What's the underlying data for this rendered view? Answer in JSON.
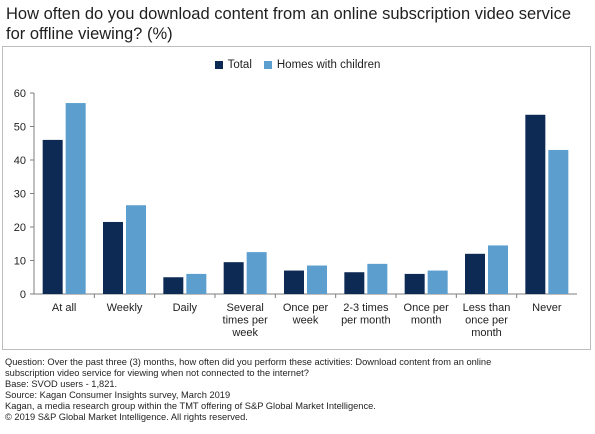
{
  "title": "How often do you download content from an online subscription video service\nfor offline viewing? (%)",
  "colors": {
    "total": "#0d2a55",
    "homes_with_children": "#5c9fcf"
  },
  "chart_data": {
    "type": "bar",
    "categories": [
      [
        "At all"
      ],
      [
        "Weekly"
      ],
      [
        "Daily"
      ],
      [
        "Several",
        "times per",
        "week"
      ],
      [
        "Once per",
        "week"
      ],
      [
        "2-3 times",
        "per month"
      ],
      [
        "Once per",
        "month"
      ],
      [
        "Less than",
        "once per",
        "month"
      ],
      [
        "Never"
      ]
    ],
    "series": [
      {
        "name": "Total",
        "values": [
          46,
          21.5,
          5,
          9.5,
          7,
          6.5,
          6,
          12,
          53.5
        ]
      },
      {
        "name": "Homes with children",
        "values": [
          57,
          26.5,
          6,
          12.5,
          8.5,
          9,
          7,
          14.5,
          43
        ]
      }
    ],
    "ylim": [
      0,
      60
    ],
    "yticks": [
      "0",
      "10",
      "20",
      "30",
      "40",
      "50",
      "60"
    ],
    "legend_position": "top-center",
    "grid": false
  },
  "notes": [
    "Question: Over the past three (3) months, how often did you perform these activities: Download content from an online\nsubscription video service for viewing when not connected to the internet?",
    "Base: SVOD users - 1,821.",
    "Source: Kagan Consumer Insights survey, March 2019",
    "Kagan, a media research group within the TMT offering of S&P Global Market Intelligence.",
    "© 2019 S&P Global Market Intelligence. All rights reserved."
  ]
}
